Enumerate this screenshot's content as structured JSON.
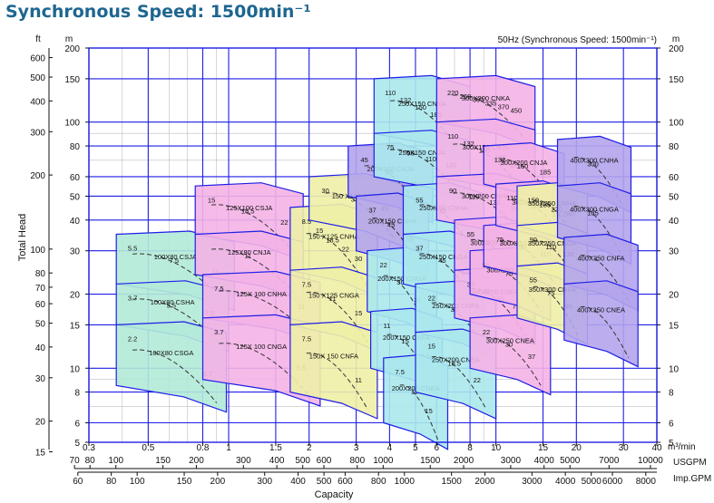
{
  "page": {
    "title": "Synchronous Speed: 1500min⁻¹"
  },
  "chart_data": {
    "type": "pump-performance-chart",
    "subtitle": "50Hz (Synchronous Speed: 1500min⁻¹)",
    "ylabel": "Total Head",
    "xlabel": "Capacity",
    "x_scale": "log",
    "y_scale": "log",
    "xlim_m3min": [
      0.3,
      40
    ],
    "ylim_m": [
      5,
      200
    ],
    "grid": true,
    "units": {
      "head_left": "ft",
      "head_m_left": "m",
      "head_right": "m",
      "capacity_m3min": "m³/min",
      "capacity_usgpm": "USGPM",
      "capacity_impgpm": "Imp.GPM"
    },
    "y_ticks_m": [
      5,
      6,
      8,
      10,
      15,
      20,
      30,
      40,
      50,
      60,
      80,
      100,
      150,
      200
    ],
    "y_ticks_m_labels": [
      "5",
      "6",
      "8",
      "10",
      "15",
      "20",
      "30",
      "40",
      "50",
      "60",
      "80",
      "100",
      "150",
      "200"
    ],
    "y_ticks_ft": [
      15,
      20,
      30,
      40,
      50,
      60,
      70,
      80,
      100,
      200,
      300,
      400,
      500,
      600
    ],
    "y_ticks_ft_labels": [
      "15",
      "20",
      "30",
      "40",
      "50",
      "60",
      "70",
      "80",
      "100",
      "200",
      "300",
      "400",
      "500",
      "600"
    ],
    "x_ticks_m3min": [
      0.3,
      0.5,
      0.8,
      1,
      1.5,
      2,
      3,
      4,
      5,
      6,
      8,
      10,
      15,
      20,
      30,
      40
    ],
    "x_ticks_m3min_labels": [
      "0.3",
      "0.5",
      "0.8",
      "1",
      "1.5",
      "2",
      "3",
      "4",
      "5",
      "6",
      "8",
      "10",
      "15",
      "20",
      "30",
      "40"
    ],
    "x_ticks_usgpm": [
      70,
      80,
      100,
      150,
      200,
      300,
      400,
      500,
      600,
      800,
      1000,
      1500,
      2000,
      3000,
      4000,
      5000,
      7000,
      10000
    ],
    "x_ticks_usgpm_labels": [
      "70",
      "80",
      "100",
      "150",
      "200",
      "300",
      "400",
      "500",
      "600",
      "800",
      "1000",
      "1500",
      "2000",
      "3000",
      "4000",
      "5000",
      "7000",
      "10000"
    ],
    "x_ticks_impgpm": [
      60,
      80,
      100,
      150,
      200,
      300,
      400,
      500,
      600,
      800,
      1000,
      1500,
      2000,
      3000,
      4000,
      5000,
      6000,
      8000
    ],
    "x_ticks_impgpm_labels": [
      "60",
      "80",
      "100",
      "150",
      "200",
      "300",
      "400",
      "500",
      "600",
      "800",
      "1000",
      "1500",
      "2000",
      "3000",
      "4000",
      "5000",
      "6000",
      "8000"
    ],
    "colors": {
      "teal": "#b2ead8",
      "pink": "#f4b2e6",
      "yellow": "#eef0a6",
      "lavender": "#b4a4ec",
      "cyan": "#aae8ec",
      "border": "#1e1ee6",
      "curve": "#333333",
      "title": "#1e6690"
    },
    "models": [
      {
        "name": "100X80 CSJA",
        "color": "teal",
        "region": {
          "q": [
            0.38,
            1.05
          ],
          "h": [
            22,
            35
          ]
        },
        "motors_kw": [
          5.5,
          7.5,
          11
        ]
      },
      {
        "name": "100X80 CSHA",
        "color": "teal",
        "region": {
          "q": [
            0.38,
            1.0
          ],
          "h": [
            15,
            22
          ]
        },
        "motors_kw": [
          3.7,
          5.5,
          7.5
        ]
      },
      {
        "name": "100X80 CSGA",
        "color": "teal",
        "region": {
          "q": [
            0.38,
            0.98
          ],
          "h": [
            8.5,
            15
          ]
        },
        "motors_kw": [
          2.2,
          3.7
        ]
      },
      {
        "name": "125X100 CSJA",
        "color": "pink",
        "region": {
          "q": [
            0.75,
            1.9
          ],
          "h": [
            35,
            55
          ]
        },
        "motors_kw": [
          15,
          18.5,
          22
        ]
      },
      {
        "name": "125X80 CNJA",
        "color": "pink",
        "region": {
          "q": [
            0.75,
            1.9
          ],
          "h": [
            24,
            35
          ]
        },
        "motors_kw": [
          11
        ]
      },
      {
        "name": "125X 100 CNHA",
        "color": "pink",
        "region": {
          "q": [
            0.8,
            2.2
          ],
          "h": [
            16,
            24
          ]
        },
        "motors_kw": [
          7.5,
          11
        ]
      },
      {
        "name": "125X 100 CNGA",
        "color": "pink",
        "region": {
          "q": [
            0.8,
            2.2
          ],
          "h": [
            9,
            16
          ]
        },
        "motors_kw": [
          3.7,
          5.5
        ]
      },
      {
        "name": "150 X125 CNHA",
        "color": "yellow",
        "region": {
          "q": [
            1.7,
            3.6
          ],
          "h": [
            25,
            45
          ]
        },
        "motors_kw": [
          8.5,
          15,
          18.5,
          22,
          30
        ]
      },
      {
        "name": "150 X125 CNGA",
        "color": "yellow",
        "region": {
          "q": [
            1.7,
            3.6
          ],
          "h": [
            15,
            25
          ]
        },
        "motors_kw": [
          7.5,
          11,
          15
        ]
      },
      {
        "name": "150X 150 CNFA",
        "color": "yellow",
        "region": {
          "q": [
            1.7,
            3.6
          ],
          "h": [
            8,
            15
          ]
        },
        "motors_kw": [
          7.5,
          11
        ]
      },
      {
        "name": "150 X100 CNJA",
        "color": "yellow",
        "region": {
          "q": [
            2.0,
            4.5
          ],
          "h": [
            40,
            60
          ]
        },
        "motors_kw": [
          30,
          37,
          45
        ]
      },
      {
        "name": "200X100 CNJA",
        "color": "lavender",
        "region": {
          "q": [
            2.8,
            5.8
          ],
          "h": [
            50,
            80
          ]
        },
        "motors_kw": [
          45,
          55,
          75
        ]
      },
      {
        "name": "200X150 CNHA",
        "color": "lavender",
        "region": {
          "q": [
            3.0,
            5.6
          ],
          "h": [
            30,
            50
          ]
        },
        "motors_kw": [
          37,
          45,
          55
        ]
      },
      {
        "name": "200X150 CNGA",
        "color": "cyan",
        "region": {
          "q": [
            3.3,
            6.0
          ],
          "h": [
            17,
            30
          ]
        },
        "motors_kw": [
          22,
          30,
          37
        ]
      },
      {
        "name": "200X150 CNFA",
        "color": "cyan",
        "region": {
          "q": [
            3.4,
            6.3
          ],
          "h": [
            10,
            17
          ]
        },
        "motors_kw": [
          11,
          15,
          18.5
        ]
      },
      {
        "name": "200X200 CNEA",
        "color": "cyan",
        "region": {
          "q": [
            3.8,
            6.6
          ],
          "h": [
            6,
            11
          ]
        },
        "motors_kw": [
          7.5,
          11,
          15
        ]
      },
      {
        "name": "250X150 CNKA",
        "color": "cyan",
        "region": {
          "q": [
            3.5,
            8.0
          ],
          "h": [
            90,
            150
          ]
        },
        "motors_kw": [
          110,
          132,
          150,
          185,
          220
        ]
      },
      {
        "name": "250X150 CNJA",
        "color": "cyan",
        "region": {
          "q": [
            3.5,
            8.0
          ],
          "h": [
            60,
            90
          ]
        },
        "motors_kw": [
          75,
          90,
          110,
          132
        ]
      },
      {
        "name": "250X150 CNHA",
        "color": "cyan",
        "region": {
          "q": [
            4.5,
            9.0
          ],
          "h": [
            35,
            55
          ]
        },
        "motors_kw": [
          55,
          75,
          90
        ]
      },
      {
        "name": "250X150 CNGA",
        "color": "cyan",
        "region": {
          "q": [
            4.5,
            9.0
          ],
          "h": [
            22,
            35
          ]
        },
        "motors_kw": [
          37,
          45,
          55
        ]
      },
      {
        "name": "250X200 CNFA",
        "color": "cyan",
        "region": {
          "q": [
            5.0,
            10.0
          ],
          "h": [
            14,
            22
          ]
        },
        "motors_kw": [
          22,
          30,
          37
        ]
      },
      {
        "name": "250X200 CNEA",
        "color": "cyan",
        "region": {
          "q": [
            5.0,
            10.0
          ],
          "h": [
            8,
            14
          ]
        },
        "motors_kw": [
          15,
          18.5,
          22
        ]
      },
      {
        "name": "300X200 CNKA",
        "color": "pink",
        "region": {
          "q": [
            6.0,
            14.0
          ],
          "h": [
            100,
            150
          ]
        },
        "motors_kw": [
          220,
          260,
          300,
          335,
          370,
          450
        ]
      },
      {
        "name": "300X150 CNJA",
        "color": "pink",
        "region": {
          "q": [
            6.0,
            14.0
          ],
          "h": [
            60,
            100
          ]
        },
        "motors_kw": [
          110,
          132,
          160,
          185,
          220
        ]
      },
      {
        "name": "300X200 CNHA",
        "color": "pink",
        "region": {
          "q": [
            6.0,
            14.0
          ],
          "h": [
            40,
            60
          ]
        },
        "motors_kw": [
          90,
          110,
          132,
          160
        ]
      },
      {
        "name": "300X200 CNGA",
        "color": "pink",
        "region": {
          "q": [
            7.0,
            14.0
          ],
          "h": [
            25,
            40
          ]
        },
        "motors_kw": [
          55,
          75,
          90,
          110
        ]
      },
      {
        "name": "300X200 CNFA",
        "color": "pink",
        "region": {
          "q": [
            7.0,
            14.0
          ],
          "h": [
            16,
            25
          ]
        },
        "motors_kw": [
          37,
          45,
          55,
          75
        ]
      },
      {
        "name": "300X250 CNFA",
        "color": "pink",
        "region": {
          "q": [
            8.0,
            16.0
          ],
          "h": [
            20,
            30
          ]
        },
        "motors_kw": [
          55,
          75,
          90
        ]
      },
      {
        "name": "300X250 CNEA",
        "color": "pink",
        "region": {
          "q": [
            8.0,
            16.0
          ],
          "h": [
            10,
            16
          ]
        },
        "motors_kw": [
          22,
          30,
          37
        ]
      },
      {
        "name": "300X250 CNGA",
        "color": "pink",
        "region": {
          "q": [
            9.0,
            18.0
          ],
          "h": [
            26,
            38
          ]
        },
        "motors_kw": [
          75,
          90,
          110
        ]
      },
      {
        "name": "300X200 CNJA",
        "color": "pink",
        "region": {
          "q": [
            9.0,
            18.0
          ],
          "h": [
            56,
            80
          ]
        },
        "motors_kw": [
          132,
          160,
          185
        ]
      },
      {
        "name": "300X250 CNHA",
        "color": "pink",
        "region": {
          "q": [
            10.0,
            20.0
          ],
          "h": [
            38,
            56
          ]
        },
        "motors_kw": [
          110,
          132,
          160
        ]
      },
      {
        "name": "350X250 CNHA",
        "color": "yellow",
        "region": {
          "q": [
            12.0,
            22.0
          ],
          "h": [
            38,
            55
          ]
        },
        "motors_kw": [
          150,
          185,
          220,
          260
        ]
      },
      {
        "name": "350X250 CNGA",
        "color": "yellow",
        "region": {
          "q": [
            12.0,
            22.0
          ],
          "h": [
            26,
            38
          ]
        },
        "motors_kw": [
          90,
          110,
          132
        ]
      },
      {
        "name": "350X300 CNFA",
        "color": "yellow",
        "region": {
          "q": [
            12.0,
            22.0
          ],
          "h": [
            16,
            26
          ]
        },
        "motors_kw": [
          55,
          75,
          90
        ]
      },
      {
        "name": "400X300 CNHA",
        "color": "lavender",
        "region": {
          "q": [
            17.0,
            32.0
          ],
          "h": [
            55,
            85
          ]
        },
        "motors_kw": [
          300
        ]
      },
      {
        "name": "400X300 CNGA",
        "color": "lavender",
        "region": {
          "q": [
            17.0,
            32.0
          ],
          "h": [
            34,
            55
          ]
        },
        "motors_kw": [
          185
        ]
      },
      {
        "name": "400X350 CNFA",
        "color": "lavender",
        "region": {
          "q": [
            18.0,
            34.0
          ],
          "h": [
            22,
            34
          ]
        },
        "motors_kw": []
      },
      {
        "name": "400X350 CNEA",
        "color": "lavender",
        "region": {
          "q": [
            18.0,
            34.0
          ],
          "h": [
            13,
            22
          ]
        },
        "motors_kw": []
      }
    ]
  }
}
